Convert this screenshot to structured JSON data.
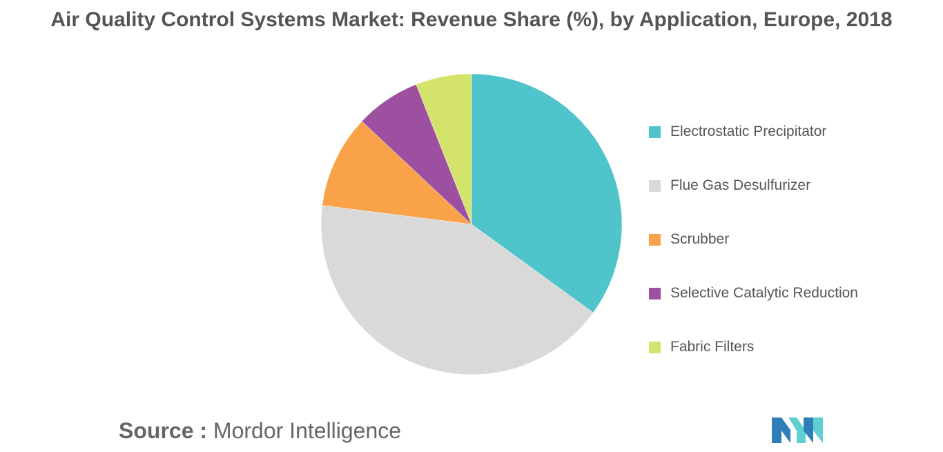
{
  "chart_data": {
    "type": "pie",
    "title": "Air Quality Control Systems Market: Revenue Share (%), by Application, Europe, 2018",
    "categories": [
      "Electrostatic Precipitator",
      "Flue Gas Desulfurizer",
      "Scrubber",
      "Selective Catalytic Reduction",
      "Fabric Filters"
    ],
    "values": [
      35,
      42,
      10,
      7,
      6
    ],
    "colors": [
      "#4fc4ca",
      "#d9d9d9",
      "#f9a24a",
      "#9c509f",
      "#d4e36b"
    ],
    "start_angle_deg": 0,
    "direction": "clockwise",
    "legend_position": "right"
  },
  "source": {
    "label": "Source :",
    "text": "Mordor Intelligence"
  },
  "logo": {
    "name": "mordor-intelligence-logo",
    "colors": [
      "#2e7fb8",
      "#5fcfd1"
    ]
  }
}
